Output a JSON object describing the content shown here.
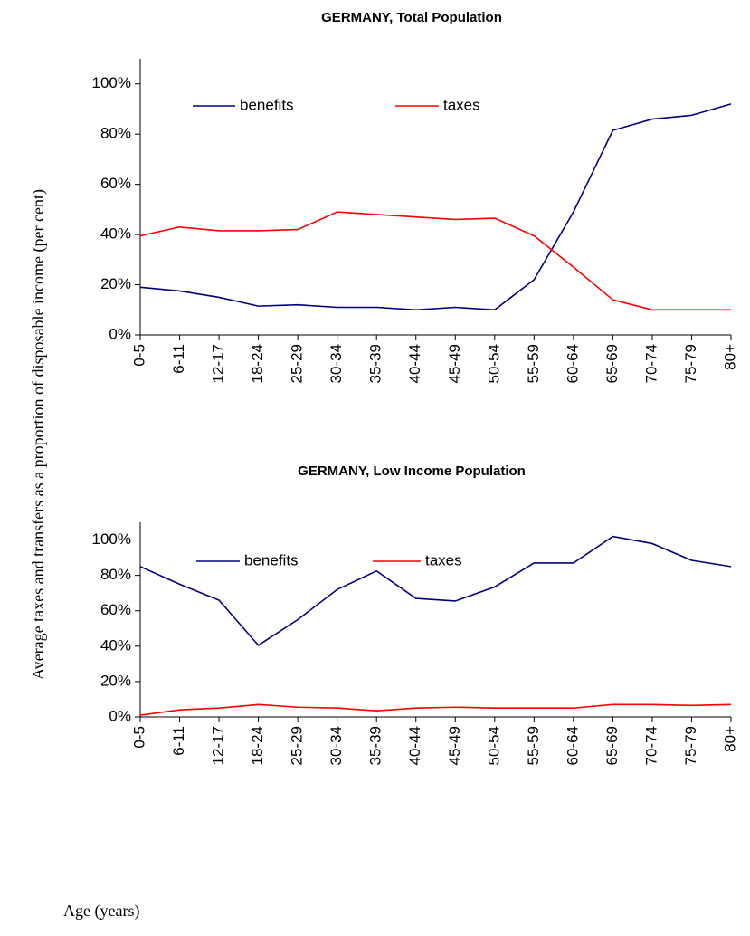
{
  "ylabel": "Average taxes and transfers as a proportion of disposable income (per cent)",
  "xlabel": "Age (years)",
  "chart_data": [
    {
      "type": "line",
      "title": "GERMANY, Total Population",
      "categories": [
        "0-5",
        "6-11",
        "12-17",
        "18-24",
        "25-29",
        "30-34",
        "35-39",
        "40-44",
        "45-49",
        "50-54",
        "55-59",
        "60-64",
        "65-69",
        "70-74",
        "75-79",
        "80+"
      ],
      "series": [
        {
          "name": "benefits",
          "color": "#000080",
          "values": [
            19,
            17.5,
            15,
            11.5,
            12,
            11,
            11,
            10,
            11,
            10,
            22,
            49,
            81.5,
            86,
            87.5,
            92
          ]
        },
        {
          "name": "taxes",
          "color": "#ff0000",
          "values": [
            39.5,
            43,
            41.5,
            41.5,
            42,
            49,
            48,
            47,
            46,
            46.5,
            39.5,
            27,
            14,
            10,
            10,
            10
          ]
        }
      ],
      "ylim": [
        0,
        110
      ],
      "yticks": [
        {
          "value": 0,
          "label": "0%"
        },
        {
          "value": 20,
          "label": "20%"
        },
        {
          "value": 40,
          "label": "40%"
        },
        {
          "value": 60,
          "label": "60%"
        },
        {
          "value": 80,
          "label": "80%"
        },
        {
          "value": 100,
          "label": "100%"
        }
      ],
      "legend": "top"
    },
    {
      "type": "line",
      "title": "GERMANY, Low Income Population",
      "categories": [
        "0-5",
        "6-11",
        "12-17",
        "18-24",
        "25-29",
        "30-34",
        "35-39",
        "40-44",
        "45-49",
        "50-54",
        "55-59",
        "60-64",
        "65-69",
        "70-74",
        "75-79",
        "80+"
      ],
      "series": [
        {
          "name": "benefits",
          "color": "#000080",
          "values": [
            85,
            75,
            66,
            40.5,
            55,
            72,
            82.5,
            67,
            65.5,
            73.5,
            87,
            87,
            102,
            98,
            88.5,
            85
          ]
        },
        {
          "name": "taxes",
          "color": "#ff0000",
          "values": [
            1,
            4,
            5,
            7,
            5.5,
            5,
            3.5,
            5,
            5.5,
            5,
            5,
            5,
            7,
            7,
            6.5,
            7
          ]
        }
      ],
      "ylim": [
        0,
        110
      ],
      "yticks": [
        {
          "value": 0,
          "label": "0%"
        },
        {
          "value": 20,
          "label": "20%"
        },
        {
          "value": 40,
          "label": "40%"
        },
        {
          "value": 60,
          "label": "60%"
        },
        {
          "value": 80,
          "label": "80%"
        },
        {
          "value": 100,
          "label": "100%"
        }
      ],
      "legend": "top"
    }
  ]
}
